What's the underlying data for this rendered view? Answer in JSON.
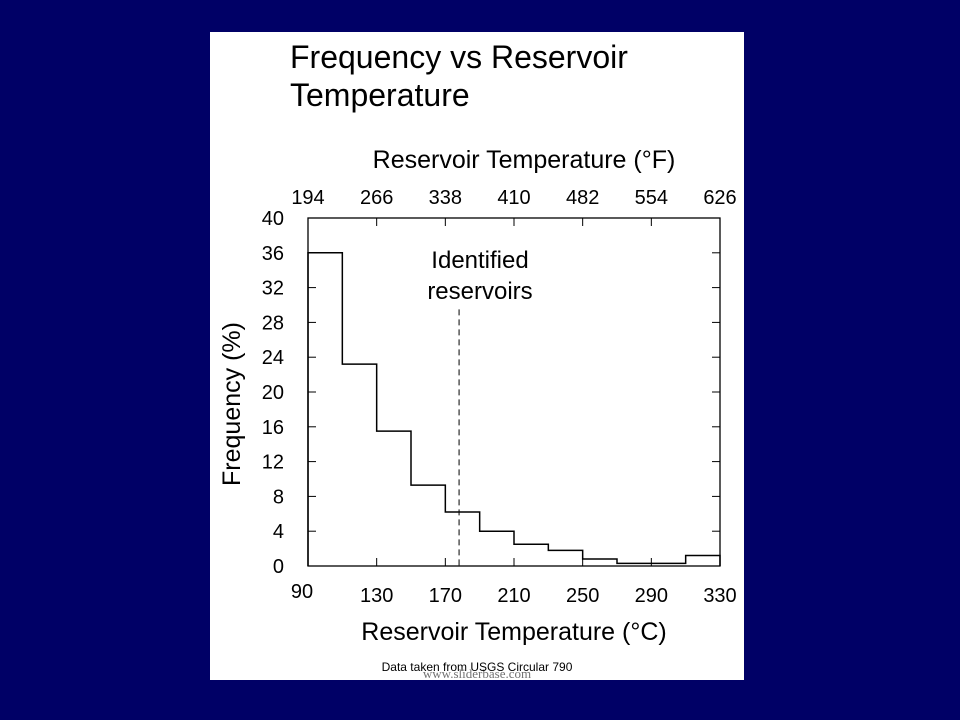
{
  "slide": {
    "background": "#000066",
    "panel_background": "#ffffff",
    "credit": "Data taken from USGS Circular 790",
    "watermark": "www.sliderbase.com"
  },
  "chart_data": {
    "type": "bar",
    "style": "step histogram",
    "title": "Frequency vs Reservoir\nTemperature",
    "xlabel_bottom": "Reservoir Temperature (°C)",
    "xlabel_top": "Reservoir Temperature (°F)",
    "ylabel": "Frequency (%)",
    "xlim": [
      90,
      330
    ],
    "ylim": [
      0,
      40
    ],
    "x_ticks_bottom": [
      90,
      130,
      170,
      210,
      250,
      290,
      330
    ],
    "x_ticks_top": [
      "194",
      "266",
      "338",
      "410",
      "482",
      "554",
      "626"
    ],
    "y_ticks": [
      0,
      4,
      8,
      12,
      16,
      20,
      24,
      28,
      32,
      36,
      40
    ],
    "grid": false,
    "bins": [
      {
        "from": 90,
        "to": 110,
        "value": 36
      },
      {
        "from": 110,
        "to": 130,
        "value": 23.2
      },
      {
        "from": 130,
        "to": 150,
        "value": 15.5
      },
      {
        "from": 150,
        "to": 170,
        "value": 9.3
      },
      {
        "from": 170,
        "to": 190,
        "value": 6.2
      },
      {
        "from": 190,
        "to": 210,
        "value": 4.0
      },
      {
        "from": 210,
        "to": 230,
        "value": 2.5
      },
      {
        "from": 230,
        "to": 250,
        "value": 1.8
      },
      {
        "from": 250,
        "to": 270,
        "value": 0.8
      },
      {
        "from": 270,
        "to": 310,
        "value": 0.3
      },
      {
        "from": 310,
        "to": 330,
        "value": 1.2
      }
    ],
    "annotation": {
      "text": [
        "Identified",
        "reservoirs"
      ],
      "x": 178,
      "line_y_top": 29.5,
      "line_style": "dashed"
    }
  }
}
